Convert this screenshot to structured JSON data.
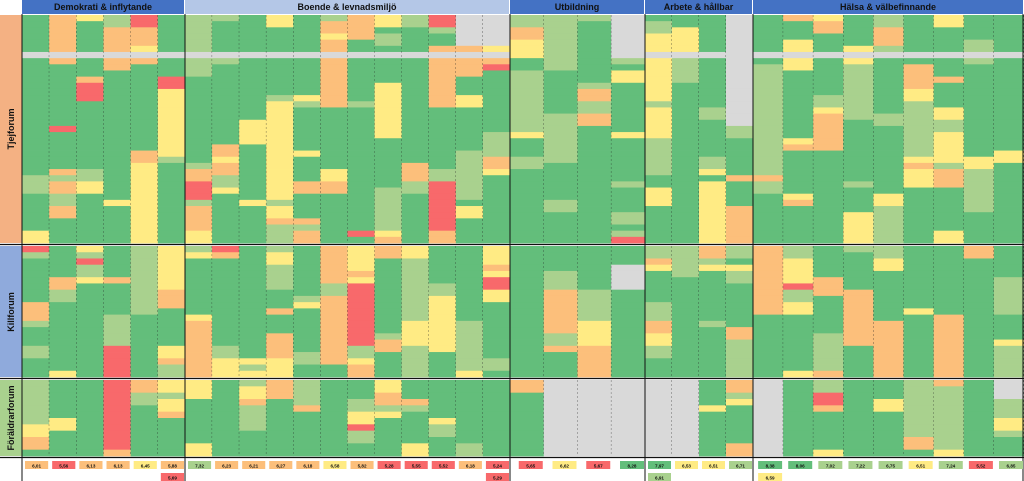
{
  "colors": {
    "header_blue": "#4472c4",
    "header_light": "#b4c7e7",
    "group_tjej": "#f4b183",
    "group_kille": "#8faadc",
    "group_foralder": "#a9d18e",
    "good": "#63be7b",
    "lightgood": "#a9d18e",
    "mid": "#ffeb84",
    "warn": "#fcbf7b",
    "bad": "#f8696b",
    "empty": "#d9d9d9"
  },
  "chart_data": {
    "type": "heatmap",
    "categories": [
      "Demokrati & inflytande",
      "Boende & levnadsmiljö",
      "Utbildning",
      "Arbete & hållbar försörjning",
      "Hälsa & välbefinnande"
    ],
    "groups": [
      "Tjejforum",
      "Killforum",
      "Föräldrarforum"
    ],
    "summary_values": [
      "6,01",
      "5,56",
      "6,13",
      "6,13",
      "6,45",
      "5,88",
      "7,32",
      "6,23",
      "6,21",
      "6,27",
      "6,18",
      "6,58",
      "5,82",
      "5,28",
      "5,55",
      "5,52",
      "6,18",
      "5,24",
      "5,65",
      "6,62",
      "5,67",
      "8,28",
      "7,97",
      "6,53",
      "6,51",
      "6,71",
      "8,38",
      "8,06",
      "7,02",
      "7,22",
      "6,75",
      "6,51",
      "7,24",
      "5,52",
      "6,85",
      "5,41"
    ],
    "summary_extra": [
      "5,69",
      "5,29",
      "6,91",
      "6,59",
      "8,64"
    ]
  }
}
